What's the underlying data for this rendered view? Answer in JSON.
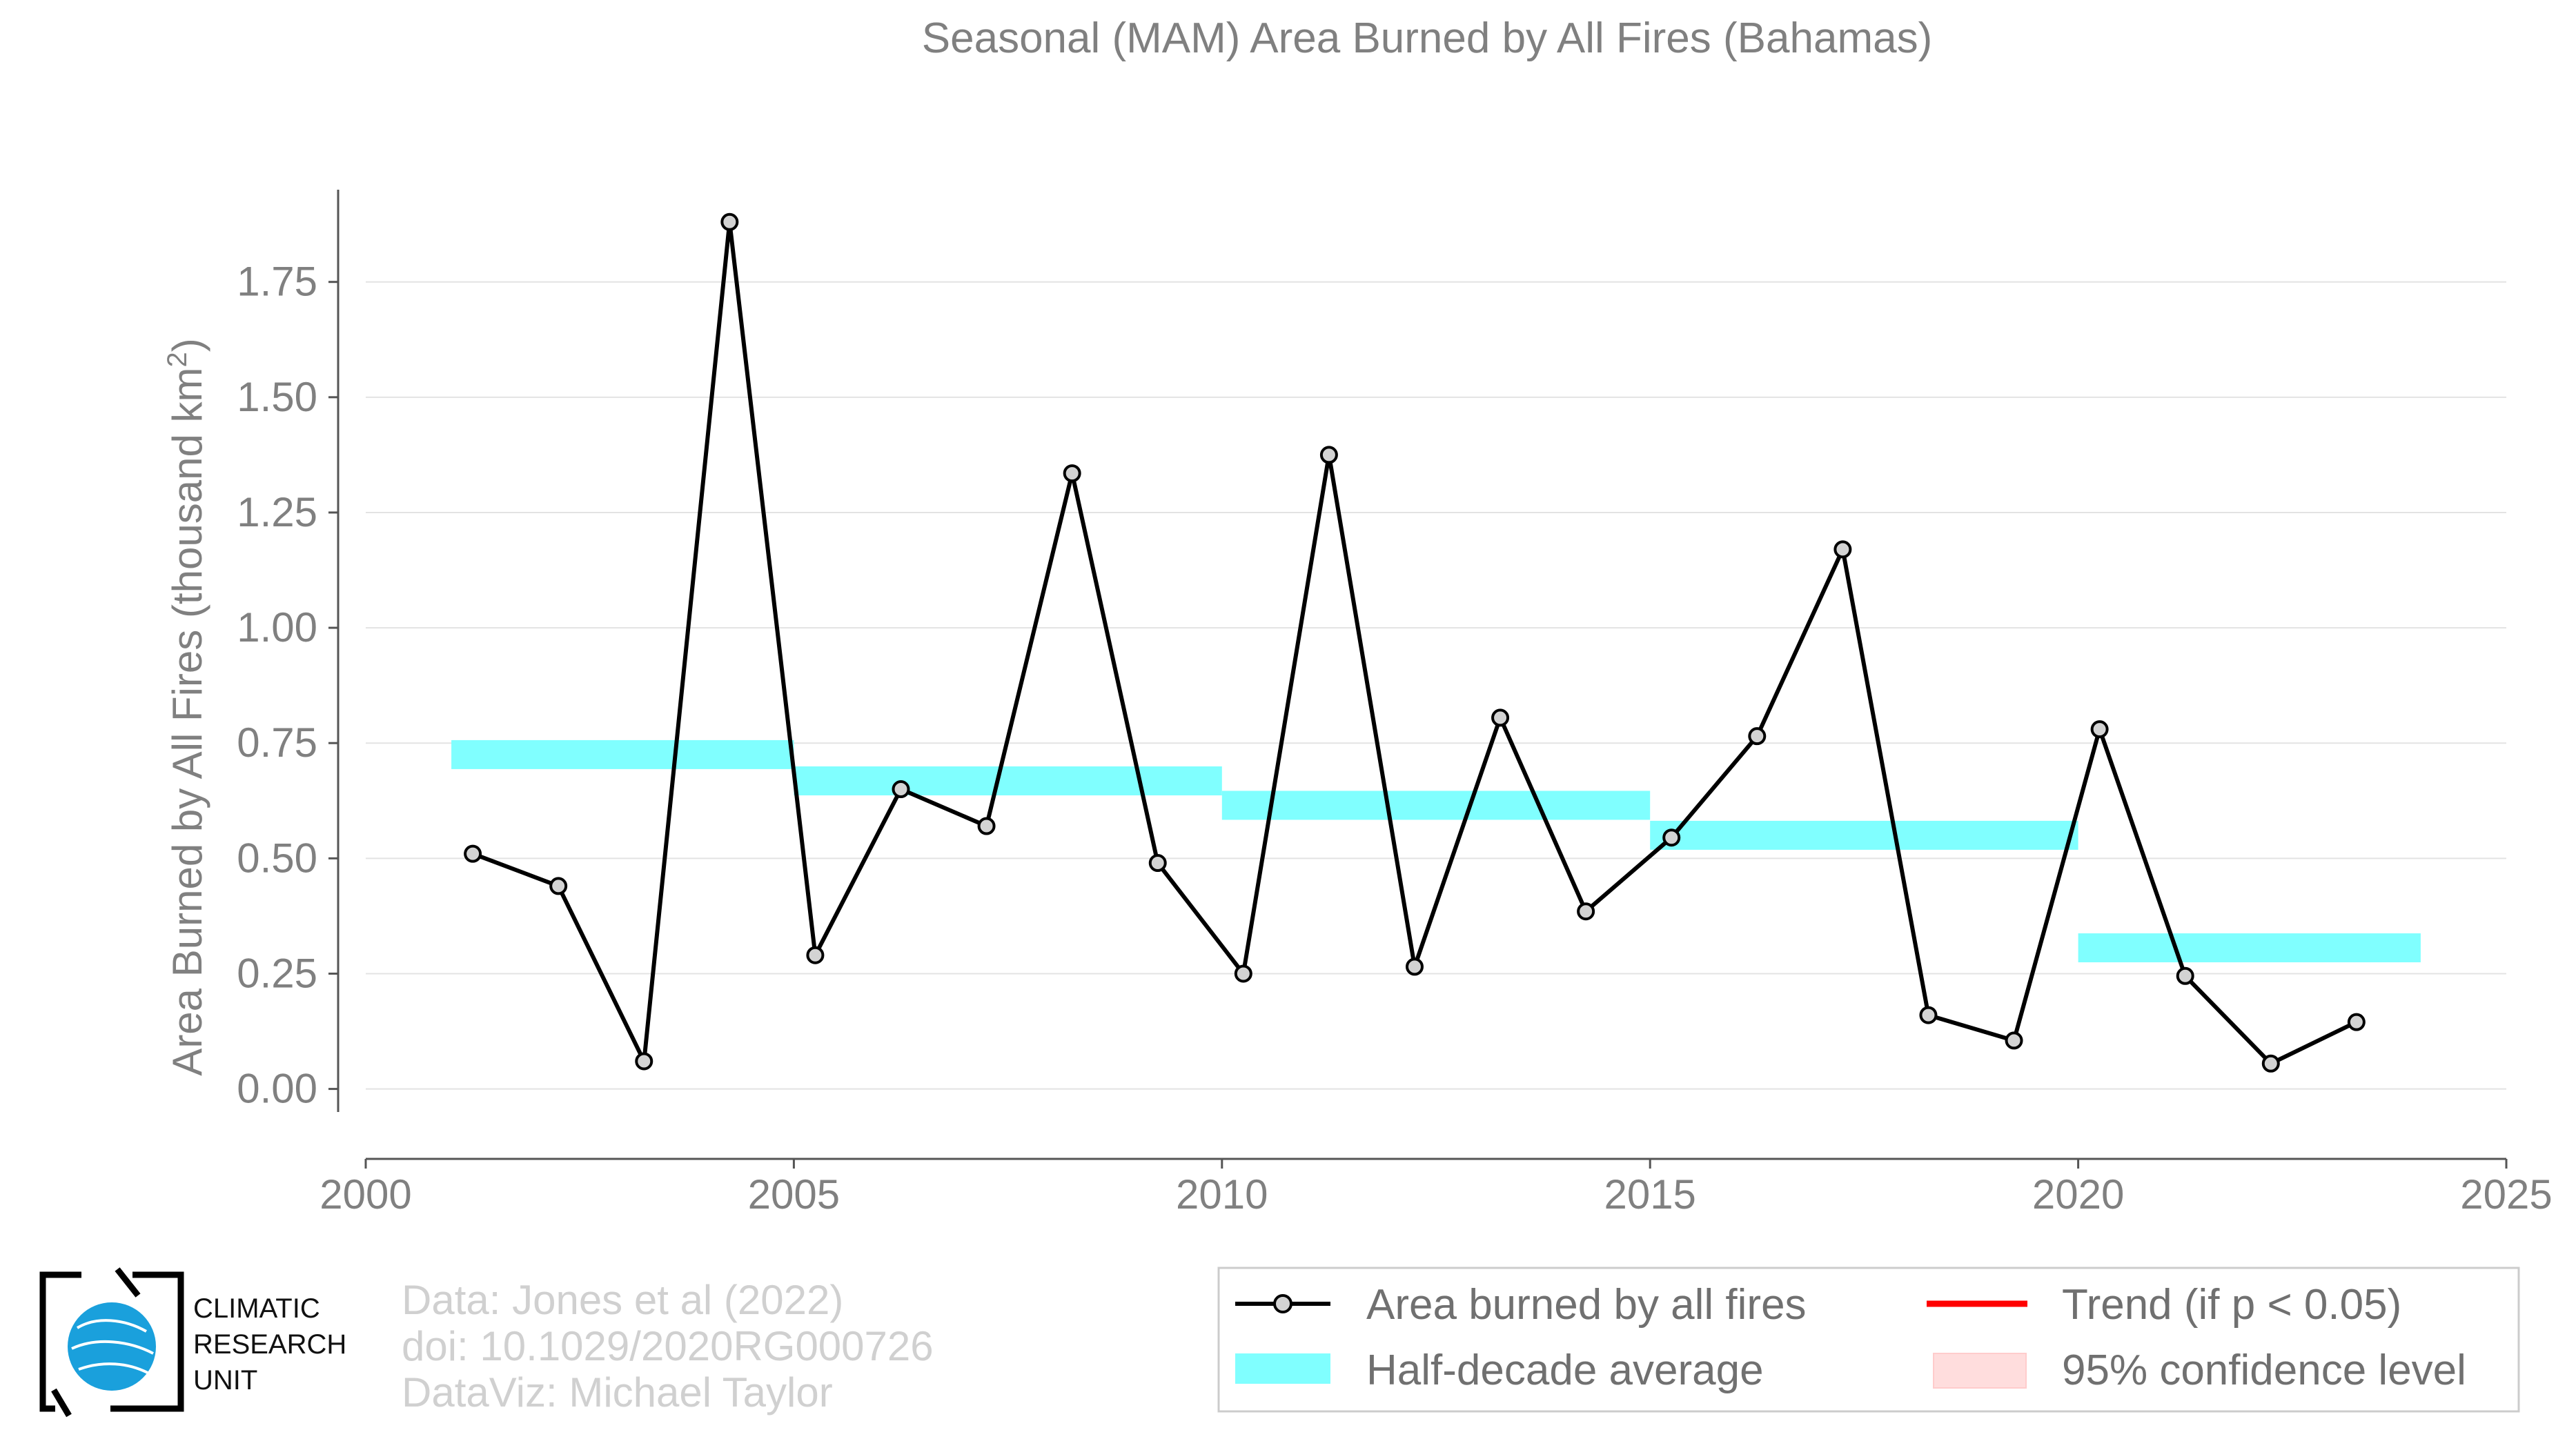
{
  "chart_data": {
    "type": "line",
    "title": "Seasonal (MAM) Area Burned by All Fires (Bahamas)",
    "xlabel": "",
    "ylabel": "Area Burned by All Fires (thousand km",
    "ylabel_sup": "2",
    "ylabel_end": ")",
    "xlim": [
      2000,
      2025
    ],
    "ylim": [
      -0.05,
      1.95
    ],
    "xticks": [
      2000,
      2005,
      2010,
      2015,
      2020,
      2025
    ],
    "xtick_labels": [
      "2000",
      "2005",
      "2010",
      "2015",
      "2020",
      "2025"
    ],
    "yticks": [
      0.0,
      0.25,
      0.5,
      0.75,
      1.0,
      1.25,
      1.5,
      1.75
    ],
    "ytick_labels": [
      "0.00",
      "0.25",
      "0.50",
      "0.75",
      "1.00",
      "1.25",
      "1.50",
      "1.75"
    ],
    "grid": "horizontal",
    "series": [
      {
        "name": "Area burned by all fires",
        "color": "#000000",
        "x": [
          2001.25,
          2002.25,
          2003.25,
          2004.25,
          2005.25,
          2006.25,
          2007.25,
          2008.25,
          2009.25,
          2010.25,
          2011.25,
          2012.25,
          2013.25,
          2014.25,
          2015.25,
          2016.25,
          2017.25,
          2018.25,
          2019.25,
          2020.25,
          2021.25,
          2022.25,
          2023.25
        ],
        "y": [
          0.51,
          0.44,
          0.06,
          1.88,
          0.29,
          0.65,
          0.57,
          1.335,
          0.49,
          0.25,
          1.375,
          0.265,
          0.805,
          0.385,
          0.545,
          0.765,
          1.17,
          0.16,
          0.105,
          0.78,
          0.245,
          0.055,
          0.145
        ]
      }
    ],
    "half_decade_average": {
      "name": "Half-decade average",
      "color": "#80ffff",
      "segments": [
        {
          "x_start": 2001,
          "x_end": 2005,
          "value": 0.725
        },
        {
          "x_start": 2005,
          "x_end": 2010,
          "value": 0.668
        },
        {
          "x_start": 2010,
          "x_end": 2015,
          "value": 0.615
        },
        {
          "x_start": 2015,
          "x_end": 2020,
          "value": 0.55
        },
        {
          "x_start": 2020,
          "x_end": 2024,
          "value": 0.306
        }
      ]
    },
    "legend": {
      "placement": "bottom-right",
      "items": [
        {
          "label": "Area burned by all fires",
          "kind": "line-marker",
          "color": "#000000"
        },
        {
          "label": "Trend (if p < 0.05)",
          "kind": "line",
          "color": "#ff0000"
        },
        {
          "label": "Half-decade average",
          "kind": "band",
          "color": "#80ffff"
        },
        {
          "label": "95% confidence level",
          "kind": "band",
          "color": "#ffdddd"
        }
      ]
    }
  },
  "credits": {
    "line1": "Data: Jones et al (2022)",
    "line2": "doi: 10.1029/2020RG000726",
    "line3": "DataViz: Michael Taylor"
  },
  "logo": {
    "line1": "CLIMATIC",
    "line2": "RESEARCH",
    "line3": "UNIT"
  }
}
